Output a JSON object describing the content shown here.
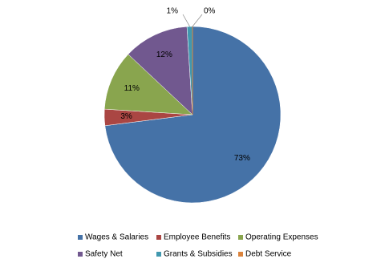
{
  "chart_data": {
    "type": "pie",
    "categories": [
      "Wages & Salaries",
      "Employee Benefits",
      "Operating Expenses",
      "Safety Net",
      "Grants & Subsidies",
      "Debt Service"
    ],
    "values": [
      73,
      3,
      11,
      12,
      1,
      0
    ],
    "value_labels": [
      "73%",
      "3%",
      "11%",
      "12%",
      "1%",
      "0%"
    ],
    "colors": [
      "#4572A7",
      "#AA4643",
      "#89A54E",
      "#71588F",
      "#4198AF",
      "#DB843D"
    ],
    "legend": "bottom"
  }
}
